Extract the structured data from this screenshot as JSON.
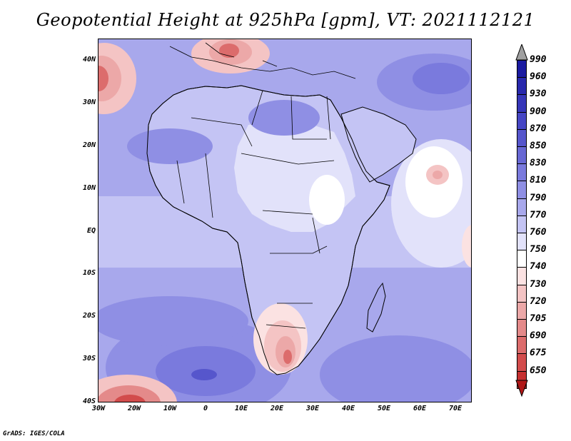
{
  "title": "Geopotential Height at 925hPa [gpm], VT: 2021112121",
  "credit": "GrADS: IGES/COLA",
  "latitudes": [
    "40N",
    "30N",
    "20N",
    "10N",
    "EQ",
    "10S",
    "20S",
    "30S",
    "40S"
  ],
  "longitudes": [
    "30W",
    "20W",
    "10W",
    "0",
    "10E",
    "20E",
    "30E",
    "40E",
    "50E",
    "60E",
    "70E"
  ],
  "colorbar": {
    "top_arrow_color": "#a0a0a0",
    "bottom_arrow_color": "#b01818",
    "levels": [
      "990",
      "960",
      "930",
      "900",
      "870",
      "850",
      "830",
      "810",
      "790",
      "770",
      "760",
      "750",
      "740",
      "730",
      "720",
      "705",
      "690",
      "675",
      "650"
    ],
    "colors": [
      "#1a1aa0",
      "#2828ac",
      "#3636b8",
      "#4646c4",
      "#5656cc",
      "#6868d4",
      "#7a7add",
      "#8f8fe4",
      "#a8a8ec",
      "#c4c4f4",
      "#e2e2fa",
      "#ffffff",
      "#fbe2e2",
      "#f4c4c4",
      "#eca8a8",
      "#e48a8a",
      "#dc6c6c",
      "#d24c4c",
      "#c63030"
    ]
  },
  "map": {
    "region": "Africa",
    "ocean_color": "#a8a8ec",
    "africa_color": "#c4c4f4",
    "interior_color": "#e2e2fa",
    "high_color": "#8f8fe4",
    "low_color": "#eca8a8",
    "low_core_color": "#dc6c6c"
  }
}
